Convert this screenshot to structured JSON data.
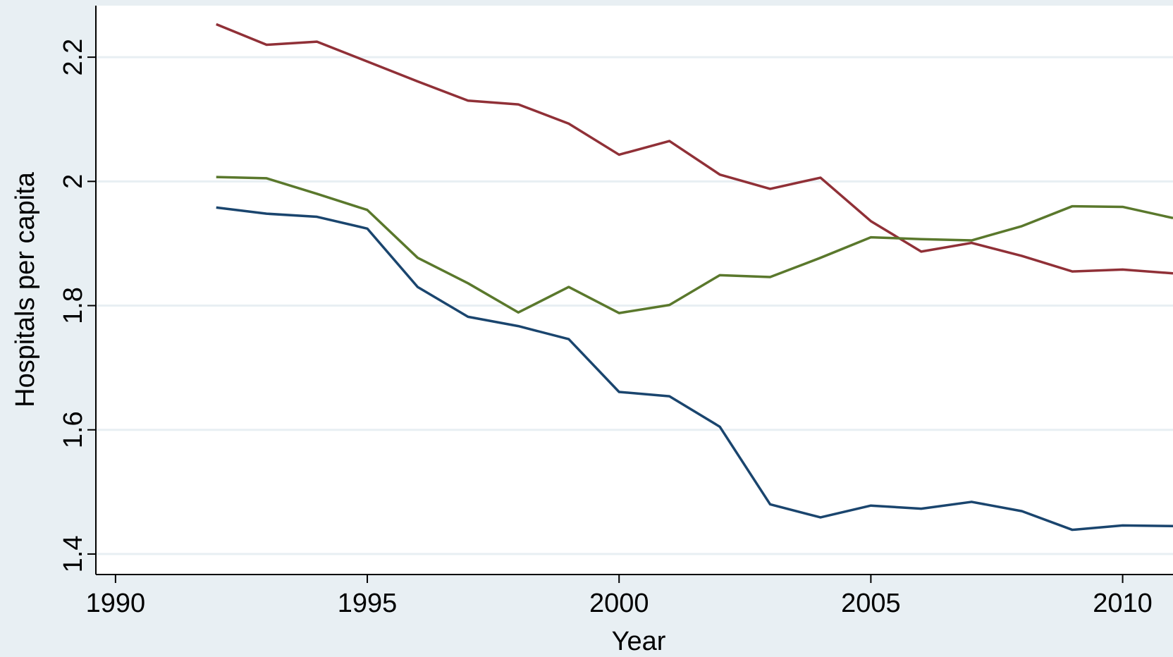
{
  "chart_data": {
    "type": "line",
    "x_label": "Year",
    "y_label": "Hospitals per capita",
    "x": [
      1992,
      1993,
      1994,
      1995,
      1996,
      1997,
      1998,
      1999,
      2000,
      2001,
      2002,
      2003,
      2004,
      2005,
      2006,
      2007,
      2008,
      2009,
      2010,
      2011
    ],
    "series": [
      {
        "color": "#903037",
        "values": [
          2.253,
          2.22,
          2.225,
          2.193,
          2.161,
          2.13,
          2.124,
          2.093,
          2.043,
          2.065,
          2.011,
          1.988,
          2.006,
          1.936,
          1.887,
          1.901,
          1.88,
          1.855,
          1.858,
          1.852
        ]
      },
      {
        "color": "#5a782c",
        "values": [
          2.007,
          2.005,
          1.98,
          1.954,
          1.877,
          1.836,
          1.789,
          1.83,
          1.788,
          1.801,
          1.849,
          1.846,
          1.877,
          1.91,
          1.907,
          1.905,
          1.928,
          1.96,
          1.959,
          1.941
        ]
      },
      {
        "color": "#1a456e",
        "values": [
          1.958,
          1.948,
          1.943,
          1.924,
          1.83,
          1.782,
          1.767,
          1.746,
          1.661,
          1.654,
          1.605,
          1.48,
          1.459,
          1.478,
          1.473,
          1.484,
          1.469,
          1.439,
          1.446,
          1.445
        ]
      }
    ],
    "xlim": [
      1989.61,
      2011
    ],
    "xticks": [
      1990,
      1995,
      2000,
      2005,
      2010
    ],
    "ylim": [
      1.367,
      2.283
    ],
    "yticks": [
      1.4,
      1.6,
      1.8,
      2,
      2.2
    ],
    "grid": true
  }
}
